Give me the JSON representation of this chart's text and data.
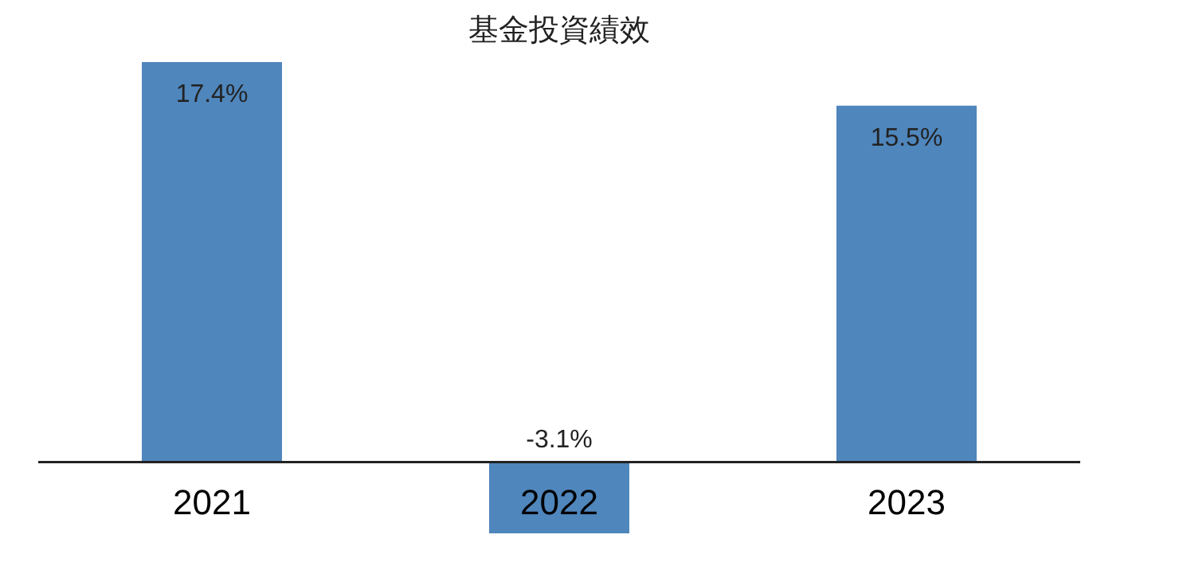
{
  "chart_data": {
    "type": "bar",
    "title": "基金投資績效",
    "categories": [
      "2021",
      "2022",
      "2023"
    ],
    "values": [
      17.4,
      -3.1,
      15.5
    ],
    "value_labels": [
      "17.4%",
      "-3.1%",
      "15.5%"
    ],
    "color": "#4f86bc"
  }
}
